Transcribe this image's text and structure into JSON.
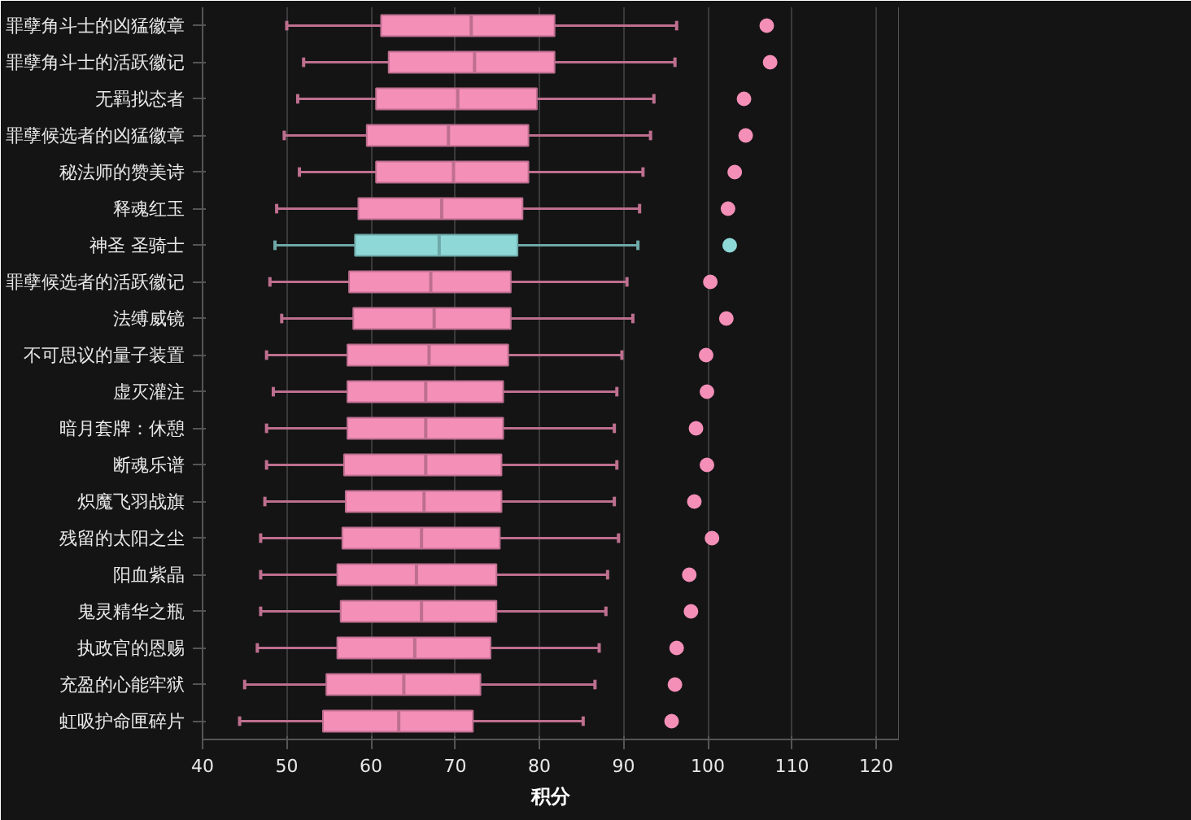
{
  "chart_data": {
    "type": "box",
    "xlabel": "积分",
    "orientation": "horizontal",
    "categories": [
      "罪孽角斗士的凶猛徽章",
      "罪孽角斗士的活跃徽记",
      "无羁拟态者",
      "罪孽候选者的凶猛徽章",
      "秘法师的赞美诗",
      "释魂红玉",
      "神圣 圣骑士",
      "罪孽候选者的活跃徽记",
      "法缚威镜",
      "不可思议的量子装置",
      "虚灭灌注",
      "暗月套牌：休憩",
      "断魂乐谱",
      "炽魔飞羽战旗",
      "残留的太阳之尘",
      "阳血紫晶",
      "鬼灵精华之瓶",
      "执政官的恩赐",
      "充盈的心能牢狱",
      "虹吸护命匣碎片"
    ],
    "colors": [
      "#f48fb8",
      "#f48fb8",
      "#f48fb8",
      "#f48fb8",
      "#f48fb8",
      "#f48fb8",
      "#8fd8d8",
      "#f48fb8",
      "#f48fb8",
      "#f48fb8",
      "#f48fb8",
      "#f48fb8",
      "#f48fb8",
      "#f48fb8",
      "#f48fb8",
      "#f48fb8",
      "#f48fb8",
      "#f48fb8",
      "#f48fb8",
      "#f48fb8"
    ],
    "boxes": [
      {
        "low": 50.0,
        "q1": 61.2,
        "median": 71.9,
        "q3": 81.8,
        "high": 96.3,
        "outliers": [
          107.0
        ]
      },
      {
        "low": 52.0,
        "q1": 62.1,
        "median": 72.3,
        "q3": 81.8,
        "high": 96.1,
        "outliers": [
          107.4
        ]
      },
      {
        "low": 51.3,
        "q1": 60.6,
        "median": 70.3,
        "q3": 79.7,
        "high": 93.6,
        "outliers": [
          104.3
        ]
      },
      {
        "low": 49.7,
        "q1": 59.5,
        "median": 69.2,
        "q3": 78.7,
        "high": 93.2,
        "outliers": [
          104.5
        ]
      },
      {
        "low": 51.5,
        "q1": 60.6,
        "median": 69.8,
        "q3": 78.7,
        "high": 92.3,
        "outliers": [
          103.2
        ]
      },
      {
        "low": 48.8,
        "q1": 58.5,
        "median": 68.4,
        "q3": 78.0,
        "high": 91.9,
        "outliers": [
          102.4
        ]
      },
      {
        "low": 48.6,
        "q1": 58.1,
        "median": 68.1,
        "q3": 77.4,
        "high": 91.7,
        "outliers": [
          102.6
        ]
      },
      {
        "low": 48.0,
        "q1": 57.4,
        "median": 67.1,
        "q3": 76.6,
        "high": 90.4,
        "outliers": [
          100.3
        ]
      },
      {
        "low": 49.4,
        "q1": 57.9,
        "median": 67.5,
        "q3": 76.6,
        "high": 91.1,
        "outliers": [
          102.2
        ]
      },
      {
        "low": 47.6,
        "q1": 57.2,
        "median": 66.9,
        "q3": 76.3,
        "high": 89.8,
        "outliers": [
          99.8
        ]
      },
      {
        "low": 48.4,
        "q1": 57.2,
        "median": 66.5,
        "q3": 75.7,
        "high": 89.2,
        "outliers": [
          99.9
        ]
      },
      {
        "low": 47.6,
        "q1": 57.2,
        "median": 66.5,
        "q3": 75.7,
        "high": 88.9,
        "outliers": [
          98.6
        ]
      },
      {
        "low": 47.6,
        "q1": 56.8,
        "median": 66.5,
        "q3": 75.5,
        "high": 89.2,
        "outliers": [
          99.9
        ]
      },
      {
        "low": 47.4,
        "q1": 57.0,
        "median": 66.3,
        "q3": 75.5,
        "high": 88.9,
        "outliers": [
          98.4
        ]
      },
      {
        "low": 46.9,
        "q1": 56.6,
        "median": 66.0,
        "q3": 75.3,
        "high": 89.4,
        "outliers": [
          100.5
        ]
      },
      {
        "low": 46.9,
        "q1": 56.0,
        "median": 65.4,
        "q3": 74.9,
        "high": 88.1,
        "outliers": [
          97.8
        ]
      },
      {
        "low": 46.9,
        "q1": 56.4,
        "median": 66.0,
        "q3": 74.9,
        "high": 87.9,
        "outliers": [
          98.0
        ]
      },
      {
        "low": 46.5,
        "q1": 56.0,
        "median": 65.2,
        "q3": 74.2,
        "high": 87.1,
        "outliers": [
          96.3
        ]
      },
      {
        "low": 45.0,
        "q1": 54.7,
        "median": 63.9,
        "q3": 73.0,
        "high": 86.6,
        "outliers": [
          96.1
        ]
      },
      {
        "low": 44.4,
        "q1": 54.3,
        "median": 63.3,
        "q3": 72.1,
        "high": 85.2,
        "outliers": [
          95.7
        ]
      }
    ],
    "xlim": [
      40,
      122.7
    ],
    "xticks": [
      40,
      50,
      60,
      70,
      80,
      90,
      100,
      110,
      120
    ],
    "grid": "x"
  }
}
